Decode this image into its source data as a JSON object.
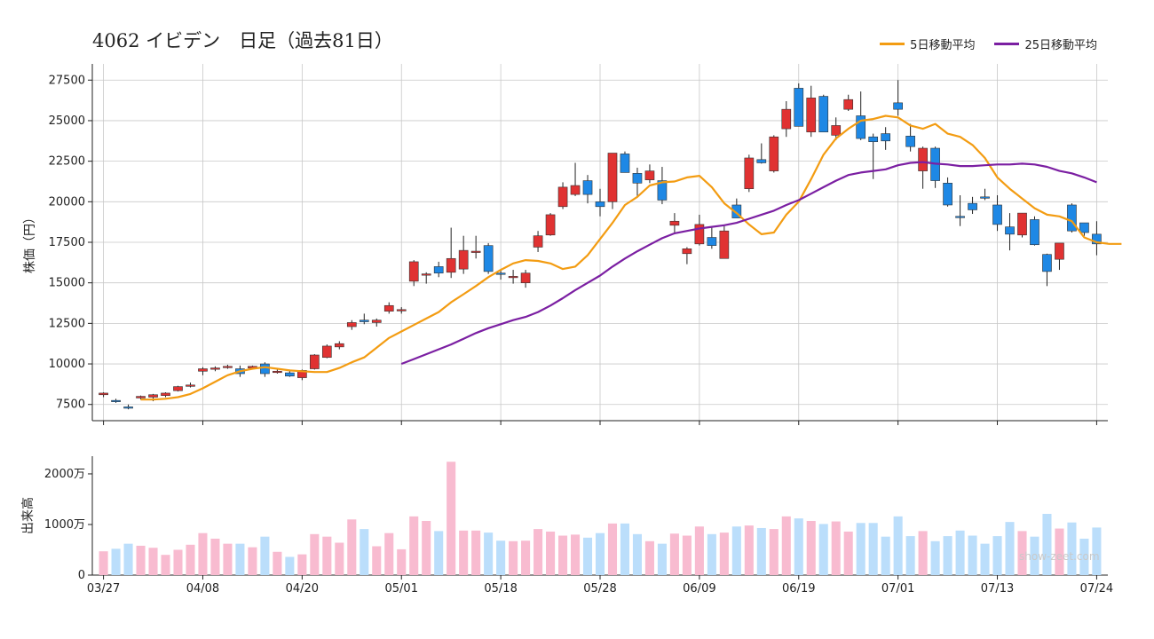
{
  "title": "4062 イビデン　日足（過去81日）",
  "watermark": "show-zeet.com",
  "colors": {
    "up": "#e03232",
    "down": "#1e88e5",
    "ma5": "#f39c12",
    "ma25": "#7b1fa2",
    "vol_up": "#f8bbd0",
    "vol_down": "#bbdefb",
    "grid": "#c8c8c8"
  },
  "chart_data": [
    {
      "type": "candlestick",
      "ylabel": "株価（円）",
      "ylim": [
        6500,
        28500
      ],
      "yticks": [
        7500,
        10000,
        12500,
        15000,
        17500,
        20000,
        22500,
        25000,
        27500
      ],
      "grid": true,
      "legend_position": "top-right",
      "x_tick_labels": [
        "03/27",
        "04/08",
        "04/20",
        "05/01",
        "05/18",
        "05/28",
        "06/09",
        "06/19",
        "07/01",
        "07/13",
        "07/24"
      ],
      "x_tick_indices": [
        0,
        8,
        16,
        24,
        32,
        40,
        48,
        56,
        64,
        72,
        80
      ],
      "candles": [
        [
          8100,
          8250,
          7950,
          8200
        ],
        [
          7750,
          7850,
          7600,
          7700
        ],
        [
          7350,
          7500,
          7200,
          7300
        ],
        [
          7900,
          8050,
          7800,
          8000
        ],
        [
          7950,
          8150,
          7700,
          8100
        ],
        [
          8050,
          8250,
          7950,
          8200
        ],
        [
          8350,
          8650,
          8300,
          8600
        ],
        [
          8650,
          8850,
          8550,
          8700
        ],
        [
          9550,
          9800,
          9300,
          9700
        ],
        [
          9700,
          9850,
          9550,
          9750
        ],
        [
          9800,
          9950,
          9700,
          9850
        ],
        [
          9700,
          9900,
          9200,
          9400
        ],
        [
          9750,
          9900,
          9650,
          9850
        ],
        [
          10000,
          10100,
          9200,
          9400
        ],
        [
          9500,
          9650,
          9400,
          9550
        ],
        [
          9450,
          9650,
          9200,
          9250
        ],
        [
          9150,
          9650,
          9000,
          9600
        ],
        [
          9700,
          10600,
          9650,
          10550
        ],
        [
          10400,
          11200,
          10350,
          11100
        ],
        [
          11050,
          11400,
          10900,
          11250
        ],
        [
          12300,
          12700,
          12100,
          12550
        ],
        [
          12700,
          13100,
          12450,
          12600
        ],
        [
          12550,
          12800,
          12300,
          12700
        ],
        [
          13250,
          13800,
          13100,
          13600
        ],
        [
          13300,
          13500,
          13100,
          13350
        ],
        [
          15100,
          16400,
          14800,
          16300
        ],
        [
          15550,
          15650,
          14950,
          15550
        ],
        [
          16000,
          16300,
          15350,
          15600
        ],
        [
          15650,
          18400,
          15300,
          16500
        ],
        [
          15850,
          17900,
          15550,
          17000
        ],
        [
          16950,
          17900,
          16500,
          16950
        ],
        [
          17300,
          17450,
          15550,
          15700
        ],
        [
          15600,
          15800,
          15200,
          15550
        ],
        [
          15400,
          15800,
          14950,
          15400
        ],
        [
          15000,
          15800,
          14700,
          15600
        ],
        [
          17200,
          18200,
          16900,
          17900
        ],
        [
          17950,
          19300,
          17900,
          19200
        ],
        [
          19700,
          21200,
          19550,
          20900
        ],
        [
          20450,
          22400,
          20350,
          21000
        ],
        [
          21300,
          21650,
          19900,
          20450
        ],
        [
          20000,
          20800,
          19100,
          19700
        ],
        [
          20000,
          23000,
          19550,
          23000
        ],
        [
          22950,
          23100,
          21800,
          21800
        ],
        [
          21750,
          22100,
          20250,
          21150
        ],
        [
          21350,
          22300,
          21150,
          21900
        ],
        [
          21300,
          22150,
          19850,
          20100
        ],
        [
          18550,
          19300,
          18000,
          18800
        ],
        [
          16800,
          17200,
          16150,
          17100
        ],
        [
          17400,
          19200,
          17300,
          18600
        ],
        [
          17800,
          18400,
          17100,
          17300
        ],
        [
          16500,
          18500,
          16500,
          18200
        ],
        [
          19800,
          20200,
          19200,
          19000
        ],
        [
          20800,
          22900,
          20600,
          22700
        ],
        [
          22600,
          23600,
          22350,
          22400
        ],
        [
          21900,
          24100,
          21800,
          24000
        ],
        [
          24500,
          26200,
          24000,
          25700
        ],
        [
          27000,
          27300,
          24650,
          24650
        ],
        [
          24300,
          27150,
          24000,
          26400
        ],
        [
          26500,
          26600,
          24500,
          24300
        ],
        [
          24100,
          25200,
          23800,
          24700
        ],
        [
          25700,
          26600,
          25600,
          26300
        ],
        [
          25300,
          26800,
          23800,
          23900
        ],
        [
          24000,
          24200,
          21400,
          23700
        ],
        [
          24200,
          24600,
          23200,
          23750
        ],
        [
          26100,
          27500,
          25300,
          25700
        ],
        [
          24050,
          24800,
          23100,
          23400
        ],
        [
          21900,
          23400,
          20800,
          23300
        ],
        [
          23300,
          23400,
          20850,
          21300
        ],
        [
          21150,
          21500,
          19700,
          19800
        ],
        [
          19100,
          20400,
          18500,
          19050
        ],
        [
          19900,
          20300,
          19250,
          19500
        ],
        [
          20300,
          20800,
          20100,
          20250
        ],
        [
          19800,
          20400,
          18200,
          18600
        ],
        [
          18450,
          19300,
          17000,
          18000
        ],
        [
          17950,
          19300,
          17800,
          19300
        ],
        [
          18900,
          19100,
          17300,
          17350
        ],
        [
          16750,
          16800,
          14800,
          15700
        ],
        [
          16450,
          17400,
          15800,
          17450
        ],
        [
          19800,
          19900,
          18100,
          18200
        ],
        [
          18700,
          18700,
          17900,
          18100
        ],
        [
          18000,
          18800,
          16700,
          17400
        ]
      ],
      "series": [
        {
          "name": "5日移動平均",
          "start_index": 3,
          "values": [
            7800,
            7800,
            7850,
            7950,
            8150,
            8500,
            8900,
            9300,
            9550,
            9700,
            9800,
            9700,
            9600,
            9550,
            9500,
            9500,
            9750,
            10100,
            10400,
            11000,
            11600,
            12000,
            12400,
            12800,
            13200,
            13800,
            14300,
            14800,
            15350,
            15800,
            16200,
            16400,
            16350,
            16200,
            15850,
            16000,
            16700,
            17700,
            18700,
            19800,
            20300,
            21000,
            21200,
            21250,
            21500,
            21600,
            20900,
            19900,
            19300,
            18600,
            18000,
            18100,
            19200,
            20000,
            21400,
            22900,
            23900,
            24500,
            25000,
            25100,
            25300,
            25200,
            24700,
            24500,
            24800,
            24200,
            24000,
            23500,
            22700,
            21500,
            20800,
            20200,
            19600,
            19200,
            19100,
            18800,
            17800,
            17500,
            17400,
            17400
          ]
        },
        {
          "name": "25日移動平均",
          "start_index": 24,
          "values": [
            10000,
            10300,
            10600,
            10900,
            11200,
            11550,
            11900,
            12200,
            12450,
            12700,
            12900,
            13200,
            13600,
            14050,
            14550,
            15000,
            15450,
            16000,
            16500,
            16950,
            17350,
            17750,
            18050,
            18200,
            18350,
            18450,
            18550,
            18700,
            18950,
            19200,
            19450,
            19800,
            20100,
            20500,
            20900,
            21300,
            21650,
            21800,
            21900,
            22000,
            22250,
            22400,
            22450,
            22350,
            22300,
            22200,
            22200,
            22250,
            22300,
            22300,
            22350,
            22300,
            22150,
            21900,
            21750,
            21500,
            21200
          ]
        }
      ]
    },
    {
      "type": "bar",
      "ylabel": "出来高",
      "ylim": [
        0,
        2350
      ],
      "yticks": [
        0,
        1000,
        2000
      ],
      "ytick_labels": [
        "0",
        "1000万",
        "2000万"
      ],
      "units": "万株",
      "values": [
        470,
        520,
        620,
        580,
        540,
        400,
        500,
        600,
        830,
        720,
        620,
        620,
        550,
        760,
        460,
        360,
        410,
        810,
        760,
        640,
        1100,
        910,
        570,
        830,
        510,
        1160,
        1070,
        870,
        2240,
        880,
        880,
        840,
        680,
        670,
        680,
        910,
        860,
        780,
        800,
        740,
        830,
        1020,
        1020,
        810,
        670,
        620,
        820,
        780,
        960,
        810,
        840,
        960,
        980,
        930,
        910,
        1160,
        1120,
        1070,
        1010,
        1060,
        860,
        1030,
        1030,
        760,
        1160,
        770,
        870,
        670,
        770,
        880,
        780,
        620,
        770,
        1050,
        870,
        760,
        1210,
        920,
        1040,
        720,
        940
      ]
    }
  ],
  "legend": [
    {
      "label": "5日移動平均",
      "color": "#f39c12"
    },
    {
      "label": "25日移動平均",
      "color": "#7b1fa2"
    }
  ]
}
